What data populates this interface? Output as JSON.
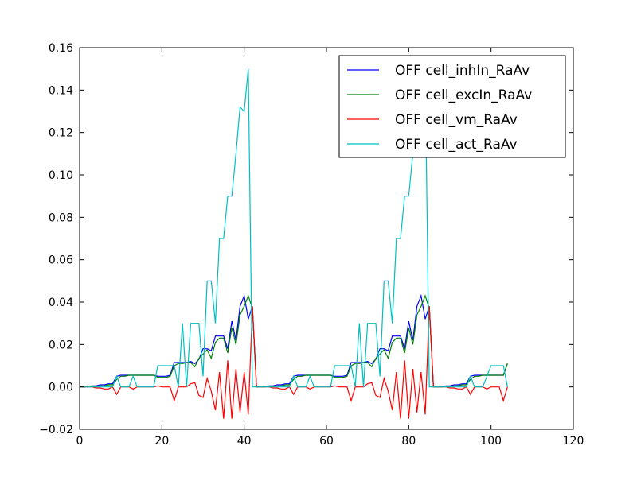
{
  "chart_data": {
    "type": "line",
    "title": "",
    "xlabel": "",
    "ylabel": "",
    "xlim": [
      0,
      120
    ],
    "ylim": [
      -0.02,
      0.16
    ],
    "x_ticks": [
      0,
      20,
      40,
      60,
      80,
      100,
      120
    ],
    "x_tick_labels": [
      "0",
      "20",
      "40",
      "60",
      "80",
      "100",
      "120"
    ],
    "y_ticks": [
      -0.02,
      0.0,
      0.02,
      0.04,
      0.06,
      0.08,
      0.1,
      0.12,
      0.14,
      0.16
    ],
    "y_tick_labels": [
      "−0.02",
      "0.00",
      "0.02",
      "0.04",
      "0.06",
      "0.08",
      "0.10",
      "0.12",
      "0.14",
      "0.16"
    ],
    "grid": false,
    "legend_position": "top-right",
    "series": [
      {
        "name": "OFF cell_inhIn_RaAv",
        "color": "#0000ff",
        "x": [
          0,
          1,
          2,
          3,
          4,
          5,
          6,
          7,
          8,
          9,
          10,
          11,
          12,
          13,
          14,
          15,
          16,
          17,
          18,
          19,
          20,
          21,
          22,
          23,
          24,
          25,
          26,
          27,
          28,
          29,
          30,
          31,
          32,
          33,
          34,
          35,
          36,
          37,
          38,
          39,
          40,
          41,
          42,
          43,
          44,
          45,
          46,
          47,
          48,
          49,
          50,
          51,
          52,
          53,
          54,
          55,
          56,
          57,
          58,
          59,
          60,
          61,
          62,
          63,
          64,
          65,
          66,
          67,
          68,
          69,
          70,
          71,
          72,
          73,
          74,
          75,
          76,
          77,
          78,
          79,
          80,
          81,
          82,
          83,
          84,
          85,
          86,
          87,
          88,
          89,
          90,
          91,
          92,
          93,
          94,
          95,
          96,
          97,
          98,
          99,
          100,
          101,
          102,
          103,
          104
        ],
        "values": [
          0.0,
          0.0,
          0.0,
          0.0005,
          0.0005,
          0.001,
          0.001,
          0.0015,
          0.0015,
          0.005,
          0.0055,
          0.0055,
          0.0055,
          0.0055,
          0.0055,
          0.0055,
          0.0055,
          0.0055,
          0.0055,
          0.005,
          0.005,
          0.005,
          0.0055,
          0.0115,
          0.0115,
          0.0115,
          0.0115,
          0.012,
          0.011,
          0.013,
          0.018,
          0.018,
          0.017,
          0.024,
          0.024,
          0.024,
          0.018,
          0.031,
          0.022,
          0.038,
          0.043,
          0.032,
          0.038,
          0.0,
          0.0,
          0.0,
          0.0005,
          0.0005,
          0.001,
          0.001,
          0.0015,
          0.0015,
          0.005,
          0.0055,
          0.0055,
          0.0055,
          0.0055,
          0.0055,
          0.0055,
          0.0055,
          0.0055,
          0.0055,
          0.005,
          0.005,
          0.005,
          0.0055,
          0.0115,
          0.0115,
          0.0115,
          0.0115,
          0.012,
          0.011,
          0.013,
          0.018,
          0.018,
          0.017,
          0.024,
          0.024,
          0.024,
          0.018,
          0.031,
          0.022,
          0.038,
          0.043,
          0.032,
          0.038,
          0.0,
          0.0,
          0.0,
          0.0005,
          0.0005,
          0.001,
          0.001,
          0.0015,
          0.0015,
          0.005,
          0.0055,
          0.0055,
          0.0055,
          0.0055,
          0.0055,
          0.0055,
          0.0055,
          0.0055,
          0.011
        ]
      },
      {
        "name": "OFF cell_excIn_RaAv",
        "color": "#008000",
        "x": [
          0,
          1,
          2,
          3,
          4,
          5,
          6,
          7,
          8,
          9,
          10,
          11,
          12,
          13,
          14,
          15,
          16,
          17,
          18,
          19,
          20,
          21,
          22,
          23,
          24,
          25,
          26,
          27,
          28,
          29,
          30,
          31,
          32,
          33,
          34,
          35,
          36,
          37,
          38,
          39,
          40,
          41,
          42,
          43,
          44,
          45,
          46,
          47,
          48,
          49,
          50,
          51,
          52,
          53,
          54,
          55,
          56,
          57,
          58,
          59,
          60,
          61,
          62,
          63,
          64,
          65,
          66,
          67,
          68,
          69,
          70,
          71,
          72,
          73,
          74,
          75,
          76,
          77,
          78,
          79,
          80,
          81,
          82,
          83,
          84,
          85,
          86,
          87,
          88,
          89,
          90,
          91,
          92,
          93,
          94,
          95,
          96,
          97,
          98,
          99,
          100,
          101,
          102,
          103,
          104
        ],
        "values": [
          0.0,
          0.0,
          0.0,
          0.0003,
          0.0003,
          0.0005,
          0.0005,
          0.001,
          0.001,
          0.0035,
          0.005,
          0.005,
          0.0055,
          0.0055,
          0.0055,
          0.0055,
          0.0055,
          0.0055,
          0.0055,
          0.0045,
          0.0045,
          0.0045,
          0.005,
          0.01,
          0.011,
          0.011,
          0.0115,
          0.0115,
          0.0095,
          0.0135,
          0.0155,
          0.0175,
          0.0135,
          0.021,
          0.023,
          0.023,
          0.016,
          0.028,
          0.02,
          0.034,
          0.038,
          0.043,
          0.037,
          0.0,
          0.0,
          0.0,
          0.0003,
          0.0003,
          0.0005,
          0.0005,
          0.001,
          0.001,
          0.0035,
          0.005,
          0.005,
          0.0055,
          0.0055,
          0.0055,
          0.0055,
          0.0055,
          0.0055,
          0.0055,
          0.0045,
          0.0045,
          0.0045,
          0.005,
          0.01,
          0.011,
          0.011,
          0.0115,
          0.0115,
          0.0095,
          0.0135,
          0.0155,
          0.0175,
          0.0135,
          0.021,
          0.023,
          0.023,
          0.016,
          0.028,
          0.02,
          0.034,
          0.038,
          0.043,
          0.037,
          0.0,
          0.0,
          0.0,
          0.0003,
          0.0003,
          0.0005,
          0.0005,
          0.001,
          0.001,
          0.0035,
          0.005,
          0.005,
          0.0055,
          0.0055,
          0.0055,
          0.0055,
          0.0055,
          0.0055,
          0.011
        ]
      },
      {
        "name": "OFF cell_vm_RaAv",
        "color": "#ff0000",
        "x": [
          0,
          1,
          2,
          3,
          4,
          5,
          6,
          7,
          8,
          9,
          10,
          11,
          12,
          13,
          14,
          15,
          16,
          17,
          18,
          19,
          20,
          21,
          22,
          23,
          24,
          25,
          26,
          27,
          28,
          29,
          30,
          31,
          32,
          33,
          34,
          35,
          36,
          37,
          38,
          39,
          40,
          41,
          42,
          43,
          44,
          45,
          46,
          47,
          48,
          49,
          50,
          51,
          52,
          53,
          54,
          55,
          56,
          57,
          58,
          59,
          60,
          61,
          62,
          63,
          64,
          65,
          66,
          67,
          68,
          69,
          70,
          71,
          72,
          73,
          74,
          75,
          76,
          77,
          78,
          79,
          80,
          81,
          82,
          83,
          84,
          85,
          86,
          87,
          88,
          89,
          90,
          91,
          92,
          93,
          94,
          95,
          96,
          97,
          98,
          99,
          100,
          101,
          102,
          103,
          104
        ],
        "values": [
          0.0,
          0.0,
          0.0,
          0.0,
          -0.0005,
          -0.0005,
          -0.001,
          -0.001,
          0.0,
          -0.0035,
          0.0,
          0.0,
          0.0,
          -0.001,
          0.0,
          0.0,
          0.0,
          0.0,
          0.0,
          0.0005,
          0.0,
          0.0,
          0.0,
          -0.0065,
          0.0,
          0.0,
          0.0,
          0.0015,
          0.002,
          -0.004,
          -0.005,
          0.004,
          -0.002,
          -0.011,
          0.007,
          -0.015,
          0.0125,
          -0.015,
          0.0085,
          -0.012,
          0.007,
          -0.013,
          0.038,
          0.0,
          0.0,
          0.0,
          0.0,
          -0.0005,
          -0.0005,
          -0.001,
          -0.001,
          0.0,
          -0.0035,
          0.0,
          0.0,
          0.0,
          -0.001,
          0.0,
          0.0,
          0.0,
          0.0,
          0.0,
          0.0005,
          0.0,
          0.0,
          0.0,
          -0.0065,
          0.0,
          0.0,
          0.0,
          0.0015,
          0.002,
          -0.004,
          -0.005,
          0.004,
          -0.002,
          -0.011,
          0.007,
          -0.015,
          0.0125,
          -0.015,
          0.0085,
          -0.012,
          0.007,
          -0.013,
          0.038,
          0.0,
          0.0,
          0.0,
          0.0,
          -0.0005,
          -0.0005,
          -0.001,
          -0.001,
          0.0,
          -0.0035,
          0.0,
          0.0,
          0.0,
          -0.001,
          0.0,
          0.0,
          0.0,
          -0.0065,
          0.0
        ]
      },
      {
        "name": "OFF cell_act_RaAv",
        "color": "#00bfbf",
        "x": [
          0,
          1,
          2,
          3,
          4,
          5,
          6,
          7,
          8,
          9,
          10,
          11,
          12,
          13,
          14,
          15,
          16,
          17,
          18,
          19,
          20,
          21,
          22,
          23,
          24,
          25,
          26,
          27,
          28,
          29,
          30,
          31,
          32,
          33,
          34,
          35,
          36,
          37,
          38,
          39,
          40,
          41,
          42,
          43,
          44,
          45,
          46,
          47,
          48,
          49,
          50,
          51,
          52,
          53,
          54,
          55,
          56,
          57,
          58,
          59,
          60,
          61,
          62,
          63,
          64,
          65,
          66,
          67,
          68,
          69,
          70,
          71,
          72,
          73,
          74,
          75,
          76,
          77,
          78,
          79,
          80,
          81,
          82,
          83,
          84,
          85,
          86,
          87,
          88,
          89,
          90,
          91,
          92,
          93,
          94,
          95,
          96,
          97,
          98,
          99,
          100,
          101,
          102,
          103,
          104
        ],
        "values": [
          0.0,
          0.0,
          0.0,
          0.0,
          0.0,
          0.0,
          0.0,
          0.0,
          0.0,
          0.005,
          0.0,
          0.0,
          0.0,
          0.005,
          0.0,
          0.0,
          0.0,
          0.0,
          0.0,
          0.01,
          0.01,
          0.01,
          0.01,
          0.01,
          0.0,
          0.03,
          0.0,
          0.03,
          0.03,
          0.03,
          0.005,
          0.05,
          0.05,
          0.03,
          0.07,
          0.07,
          0.09,
          0.09,
          0.11,
          0.132,
          0.13,
          0.15,
          0.0,
          0.0,
          0.0,
          0.0,
          0.0,
          0.0,
          0.0,
          0.0,
          0.0,
          0.0,
          0.005,
          0.0,
          0.0,
          0.0,
          0.005,
          0.0,
          0.0,
          0.0,
          0.0,
          0.0,
          0.01,
          0.01,
          0.01,
          0.01,
          0.01,
          0.0,
          0.03,
          0.0,
          0.03,
          0.03,
          0.03,
          0.005,
          0.05,
          0.05,
          0.03,
          0.07,
          0.07,
          0.09,
          0.09,
          0.11,
          0.132,
          0.13,
          0.15,
          0.0,
          0.0,
          0.0,
          0.0,
          0.0,
          0.0,
          0.0,
          0.0,
          0.0,
          0.0,
          0.005,
          0.0,
          0.0,
          0.0,
          0.005,
          0.01,
          0.01,
          0.01,
          0.01,
          0.0
        ]
      }
    ]
  }
}
